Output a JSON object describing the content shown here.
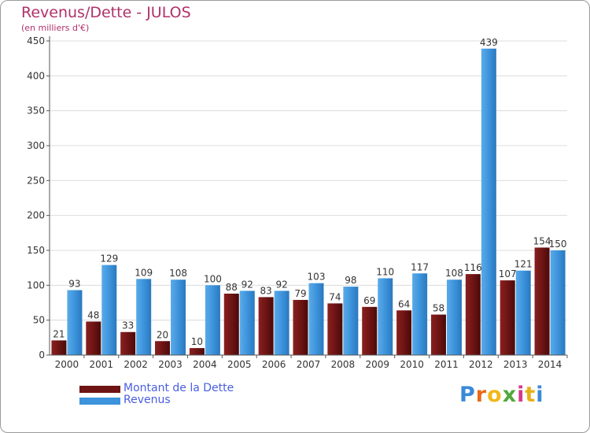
{
  "header": {
    "title": "Revenus/Dette - JULOS",
    "subtitle": "(en milliers d'€)"
  },
  "logo": {
    "text": "Proxiti",
    "letter_colors": [
      "#3a8ad8",
      "#e86a1a",
      "#f0b81a",
      "#50a83c",
      "#d23a8a",
      "#e8b018",
      "#3a8ad8"
    ]
  },
  "colors": {
    "dette": "#6e1414",
    "revenus": "#3d94dc",
    "title": "#b0306a",
    "legend_text": "#4a5ee0"
  },
  "chart_data": {
    "type": "bar",
    "title": "Revenus/Dette - JULOS",
    "subtitle": "(en milliers d'€)",
    "categories": [
      "2000",
      "2001",
      "2002",
      "2003",
      "2004",
      "2005",
      "2006",
      "2007",
      "2008",
      "2009",
      "2010",
      "2011",
      "2012",
      "2013",
      "2014"
    ],
    "series": [
      {
        "name": "Montant de la Dette",
        "color": "#6e1414",
        "values": [
          21,
          48,
          33,
          20,
          10,
          88,
          83,
          79,
          74,
          69,
          64,
          58,
          116,
          107,
          154
        ]
      },
      {
        "name": "Revenus",
        "color": "#3d94dc",
        "values": [
          93,
          129,
          109,
          108,
          100,
          92,
          92,
          103,
          98,
          110,
          117,
          108,
          439,
          121,
          150
        ]
      }
    ],
    "ylim": [
      0,
      450
    ],
    "yticks": [
      0,
      50,
      100,
      150,
      200,
      250,
      300,
      350,
      400,
      450
    ],
    "grid": true,
    "legend_position": "bottom-left"
  }
}
